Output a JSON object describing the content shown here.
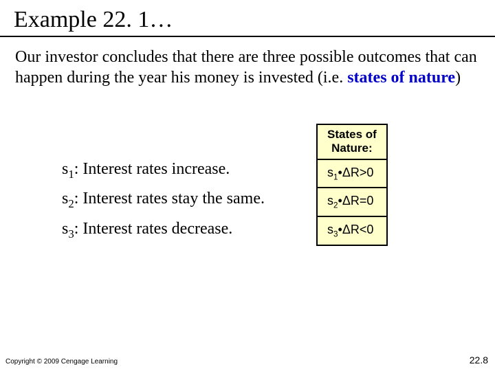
{
  "title": "Example 22. 1…",
  "paragraph_pre": "Our investor concludes that there are three possible outcomes that can happen during the year his money is invested (i.e. ",
  "keyword": "states of nature",
  "paragraph_post": ")",
  "outcomes": [
    {
      "sub": "1",
      "text": ": Interest rates increase."
    },
    {
      "sub": "2",
      "text": ": Interest rates stay the same."
    },
    {
      "sub": "3",
      "text": ": Interest rates decrease."
    }
  ],
  "table": {
    "header_line1": "States of",
    "header_line2": "Nature:",
    "rows": [
      {
        "sub": "1",
        "rel": ">0"
      },
      {
        "sub": "2",
        "rel": "=0"
      },
      {
        "sub": "3",
        "rel": "<0"
      }
    ],
    "bg_color": "#ffffcc",
    "border_color": "#000000"
  },
  "copyright": "Copyright © 2009 Cengage Learning",
  "page_number": "22.8"
}
